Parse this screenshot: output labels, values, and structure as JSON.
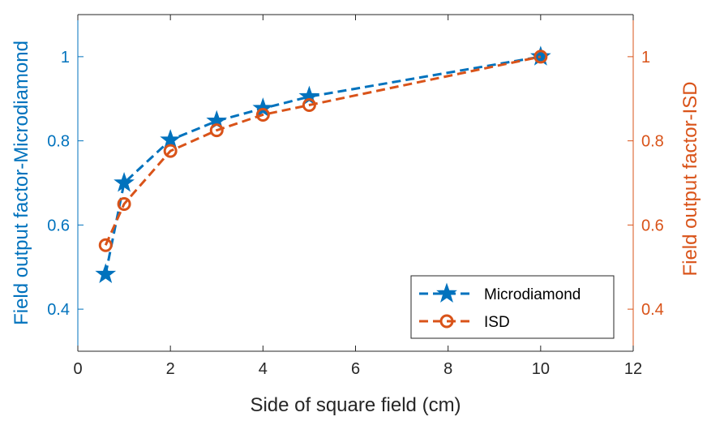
{
  "chart_data": {
    "type": "line",
    "xlabel": "Side of square field (cm)",
    "ylabel_left": "Field output factor-Microdiamond",
    "ylabel_right": "Field output factor-ISD",
    "xlim": [
      0,
      12
    ],
    "ylim_left": [
      0.3,
      1.1
    ],
    "ylim_right": [
      0.3,
      1.1
    ],
    "xticks": [
      "0",
      "2",
      "4",
      "6",
      "8",
      "10",
      "12"
    ],
    "yticks_left": [
      "0.4",
      "0.6",
      "0.8",
      "1"
    ],
    "yticks_right": [
      "0.4",
      "0.6",
      "0.8",
      "1"
    ],
    "grid": false,
    "legend_position": "bottom-right",
    "left_axis_color": "#0072BD",
    "right_axis_color": "#D95319",
    "series": [
      {
        "name": "Microdiamond",
        "axis": "left",
        "color": "#0072BD",
        "marker": "star",
        "line_style": "dashed",
        "x": [
          0.6,
          1.0,
          2.0,
          3.0,
          4.0,
          5.0,
          10.0
        ],
        "y": [
          0.483,
          0.7,
          0.802,
          0.847,
          0.877,
          0.905,
          1.0
        ]
      },
      {
        "name": "ISD",
        "axis": "right",
        "color": "#D95319",
        "marker": "circle",
        "line_style": "dashed",
        "x": [
          0.6,
          1.0,
          2.0,
          3.0,
          4.0,
          5.0,
          10.0
        ],
        "y": [
          0.552,
          0.65,
          0.776,
          0.825,
          0.862,
          0.885,
          1.0
        ]
      }
    ]
  }
}
